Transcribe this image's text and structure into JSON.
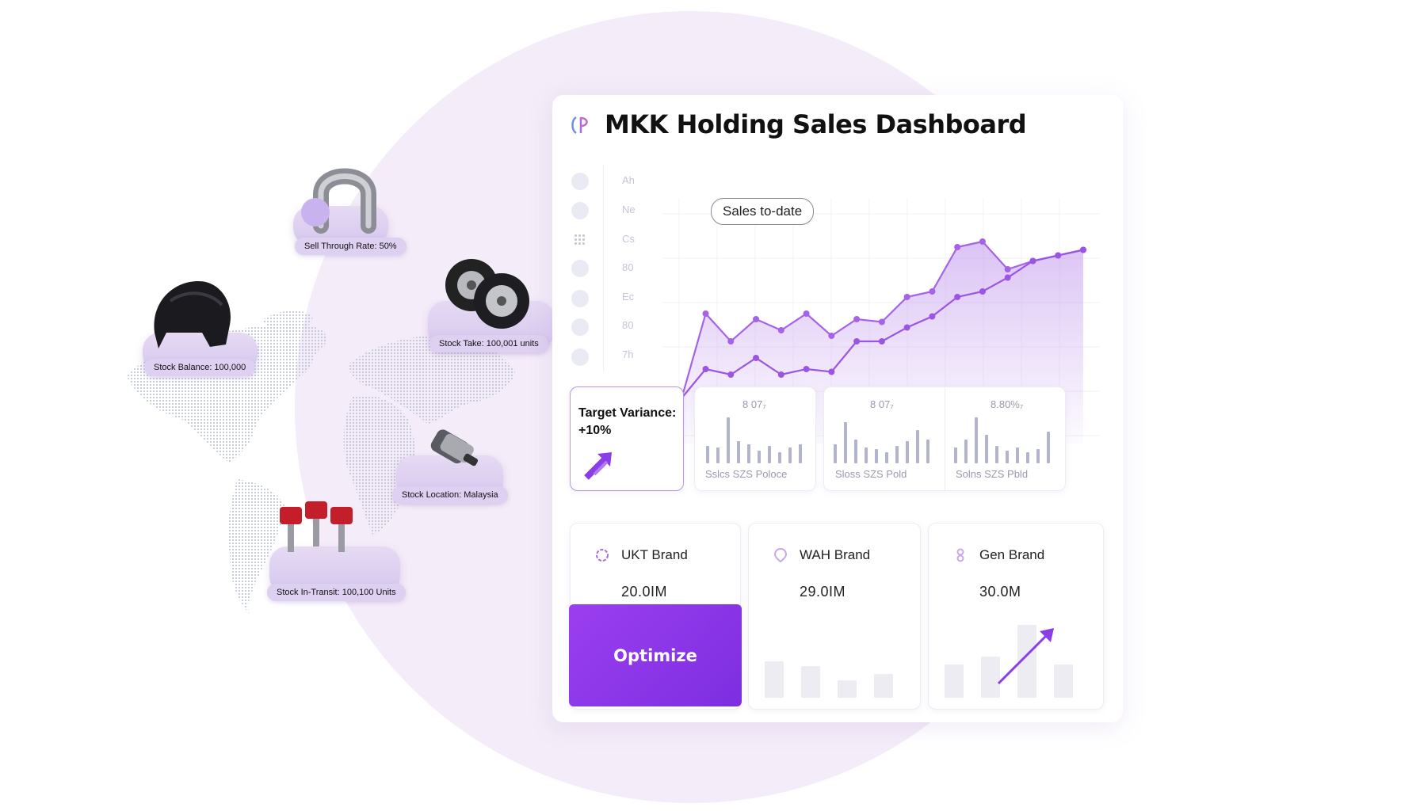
{
  "dashboard": {
    "title": "MKK Holding Sales Dashboard",
    "sales_label": "Sales to-date",
    "y_axis_labels": [
      "Ah",
      "Ne",
      "Cs",
      "80",
      "Ec",
      "80",
      "7h"
    ]
  },
  "target_variance": {
    "label": "Target Variance: +10%"
  },
  "mini_cards": [
    {
      "top": "8 07₇",
      "bottom": "Sslcs SZS Poloce"
    },
    {
      "top": "8 07₇",
      "bottom": "Sloss SZS Pold"
    },
    {
      "top": "8.80%₇",
      "bottom": "Solns SZS Pbld"
    }
  ],
  "brands": [
    {
      "name": "UKT Brand",
      "value": "20.0IM"
    },
    {
      "name": "WAH Brand",
      "value": "29.0IM"
    },
    {
      "name": "Gen Brand",
      "value": "30.0M"
    }
  ],
  "optimize_label": "Optimize",
  "inventory": {
    "sell_through": "Sell Through Rate: 50%",
    "stock_balance": "Stock Balance: 100,000",
    "stock_take": "Stock Take: 100,001 units",
    "stock_location": "Stock Location: Malaysia",
    "stock_in_transit": "Stock In-Transit: 100,100 Units"
  },
  "colors": {
    "accent": "#8a3ee8",
    "line": "#a463e8",
    "bg_circle": "#f4ecf8"
  },
  "chart_data": {
    "type": "line",
    "title": "",
    "series": [
      {
        "name": "",
        "values": [
          31,
          32,
          64,
          54,
          62,
          58,
          64,
          56,
          62,
          61,
          70,
          72,
          88,
          90,
          80,
          83,
          85,
          87
        ]
      },
      {
        "name": "",
        "values": [
          31,
          33,
          44,
          42,
          48,
          42,
          44,
          43,
          54,
          54,
          59,
          63,
          70,
          72,
          77,
          83,
          85,
          87
        ]
      }
    ]
  }
}
